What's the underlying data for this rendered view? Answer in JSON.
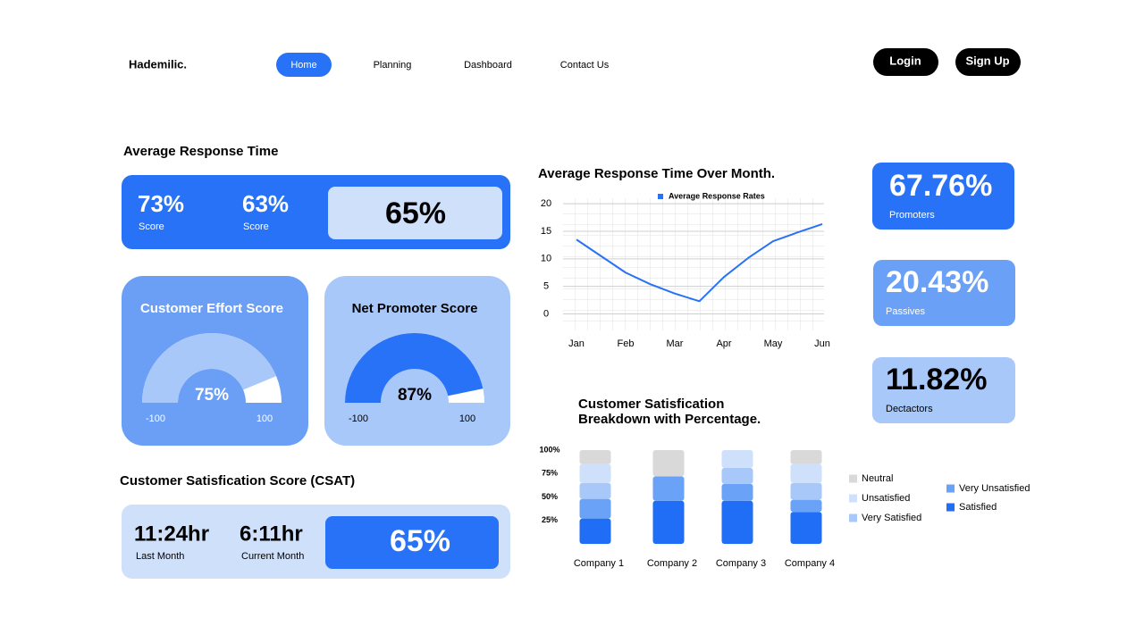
{
  "header": {
    "logo": "Hademilic.",
    "nav": [
      "Home",
      "Planning",
      "Dashboard",
      "Contact Us"
    ],
    "buttons": [
      "Login",
      "Sign Up"
    ]
  },
  "response_time": {
    "title": "Average Response Time",
    "items": [
      {
        "value": "73%",
        "label": "Score"
      },
      {
        "value": "63%",
        "label": "Score"
      }
    ],
    "highlight": "65%"
  },
  "gauges": [
    {
      "title": "Customer Effort Score",
      "value": 75,
      "value_label": "75%",
      "range": [
        -100,
        100
      ],
      "color": "#a9c8fa"
    },
    {
      "title": "Net Promoter Score",
      "value": 87,
      "value_label": "87%",
      "range": [
        -100,
        100
      ],
      "color": "#2772f6"
    }
  ],
  "csat": {
    "title": "Customer Satisfication Score (CSAT)",
    "items": [
      {
        "value": "11:24hr",
        "label": "Last Month"
      },
      {
        "value": "6:11hr",
        "label": "Current Month"
      }
    ],
    "highlight": "65%"
  },
  "kpis": [
    {
      "value": "67.76%",
      "label": "Promoters"
    },
    {
      "value": "20.43%",
      "label": "Passives"
    },
    {
      "value": "11.82%",
      "label": "Dectactors"
    }
  ],
  "chart_data": [
    {
      "type": "line",
      "title": "Average Response Time Over Month.",
      "categories": [
        "Jan",
        null,
        "Feb",
        null,
        "Mar",
        null,
        "Apr",
        null,
        "May",
        null,
        "Jun"
      ],
      "series": [
        {
          "name": "Average Response Rates",
          "color": "#2772f6",
          "values": [
            13.5,
            10.5,
            7.5,
            5.4,
            3.7,
            2.3,
            6.7,
            10.2,
            13.2,
            14.8,
            16.3
          ]
        }
      ],
      "ylim": [
        -3,
        21
      ],
      "yticks": [
        0,
        5,
        10,
        15,
        20
      ],
      "grid": true
    },
    {
      "type": "stacked_bar",
      "title": [
        "Customer Satisfication",
        "Breakdown with Percentage."
      ],
      "categories": [
        "Company 1",
        "Company 2",
        "Company 3",
        "Company 4"
      ],
      "series": [
        {
          "name": "Neutral",
          "color": "#d9d9d9",
          "values": [
            15,
            28,
            0,
            15
          ]
        },
        {
          "name": "Unsatisfied",
          "color": "#cfe0fb",
          "values": [
            20,
            0,
            19,
            20
          ]
        },
        {
          "name": "Very Satisfied",
          "color": "#a8c8fa",
          "values": [
            17,
            0,
            17,
            18
          ]
        },
        {
          "name": "Very Unsatisfied",
          "color": "#6aa2f7",
          "values": [
            21,
            26,
            18,
            13
          ]
        },
        {
          "name": "Satisfied",
          "color": "#1f6ef5",
          "values": [
            27,
            46,
            46,
            34
          ]
        }
      ],
      "ylim": [
        0,
        100
      ],
      "yticks": [
        {
          "value": 100,
          "label": "100%"
        },
        {
          "value": 75,
          "label": "75%"
        },
        {
          "value": 50,
          "label": "50%"
        },
        {
          "value": 25,
          "label": "25%"
        }
      ]
    }
  ]
}
